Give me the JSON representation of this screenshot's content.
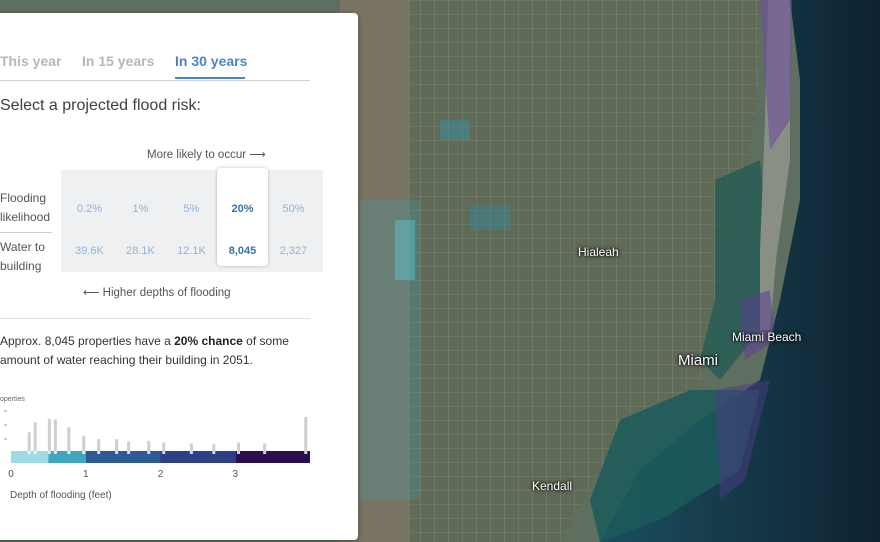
{
  "tabs": [
    {
      "label": "This year",
      "active": false
    },
    {
      "label": "In 15 years",
      "active": false
    },
    {
      "label": "In 30 years",
      "active": true
    }
  ],
  "heading": "Select a projected flood risk:",
  "more_likely_label": "More likely to occur ⟶",
  "row_labels": {
    "flooding_likelihood": [
      "Flooding",
      "likelihood"
    ],
    "water_to_building": [
      "Water to",
      "building"
    ]
  },
  "risk_options": [
    {
      "likelihood": "0.2%",
      "count": "39.6K",
      "selected": false
    },
    {
      "likelihood": "1%",
      "count": "28.1K",
      "selected": false
    },
    {
      "likelihood": "5%",
      "count": "12.1K",
      "selected": false
    },
    {
      "likelihood": "20%",
      "count": "8,045",
      "selected": true
    },
    {
      "likelihood": "50%",
      "count": "2,327",
      "selected": false
    }
  ],
  "higher_depths_label": "⟵ Higher depths of flooding",
  "summary": {
    "prefix": "Approx. 8,045 properties have a ",
    "bold": "20% chance",
    "suffix": " of some amount of water reaching their building in 2051."
  },
  "histogram": {
    "y_label": "operties",
    "x_label": "Depth of flooding (feet)",
    "x_ticks": [
      "0",
      "1",
      "2",
      "3"
    ],
    "x_range": [
      0,
      4
    ],
    "bar_colors": [
      "#9fd9e4",
      "#3fa6bb",
      "#2f5a93",
      "#2e3f86",
      "#2a0f4e"
    ],
    "color_breaks": [
      0,
      0.5,
      1.0,
      2.0,
      3.0,
      4.0
    ],
    "bars": [
      {
        "x": 0.25,
        "v": 0.55
      },
      {
        "x": 0.33,
        "v": 0.85
      },
      {
        "x": 0.52,
        "v": 0.95
      },
      {
        "x": 0.6,
        "v": 0.93
      },
      {
        "x": 0.78,
        "v": 0.7
      },
      {
        "x": 0.98,
        "v": 0.45
      },
      {
        "x": 1.18,
        "v": 0.35
      },
      {
        "x": 1.42,
        "v": 0.35
      },
      {
        "x": 1.58,
        "v": 0.28
      },
      {
        "x": 1.85,
        "v": 0.3
      },
      {
        "x": 2.05,
        "v": 0.25
      },
      {
        "x": 2.42,
        "v": 0.22
      },
      {
        "x": 2.72,
        "v": 0.2
      },
      {
        "x": 3.05,
        "v": 0.25
      },
      {
        "x": 3.4,
        "v": 0.22
      },
      {
        "x": 3.95,
        "v": 1.0
      }
    ]
  },
  "map_labels": {
    "hialeah": "Hialeah",
    "miami_beach": "Miami Beach",
    "miami": "Miami",
    "kendall": "Kendall"
  }
}
